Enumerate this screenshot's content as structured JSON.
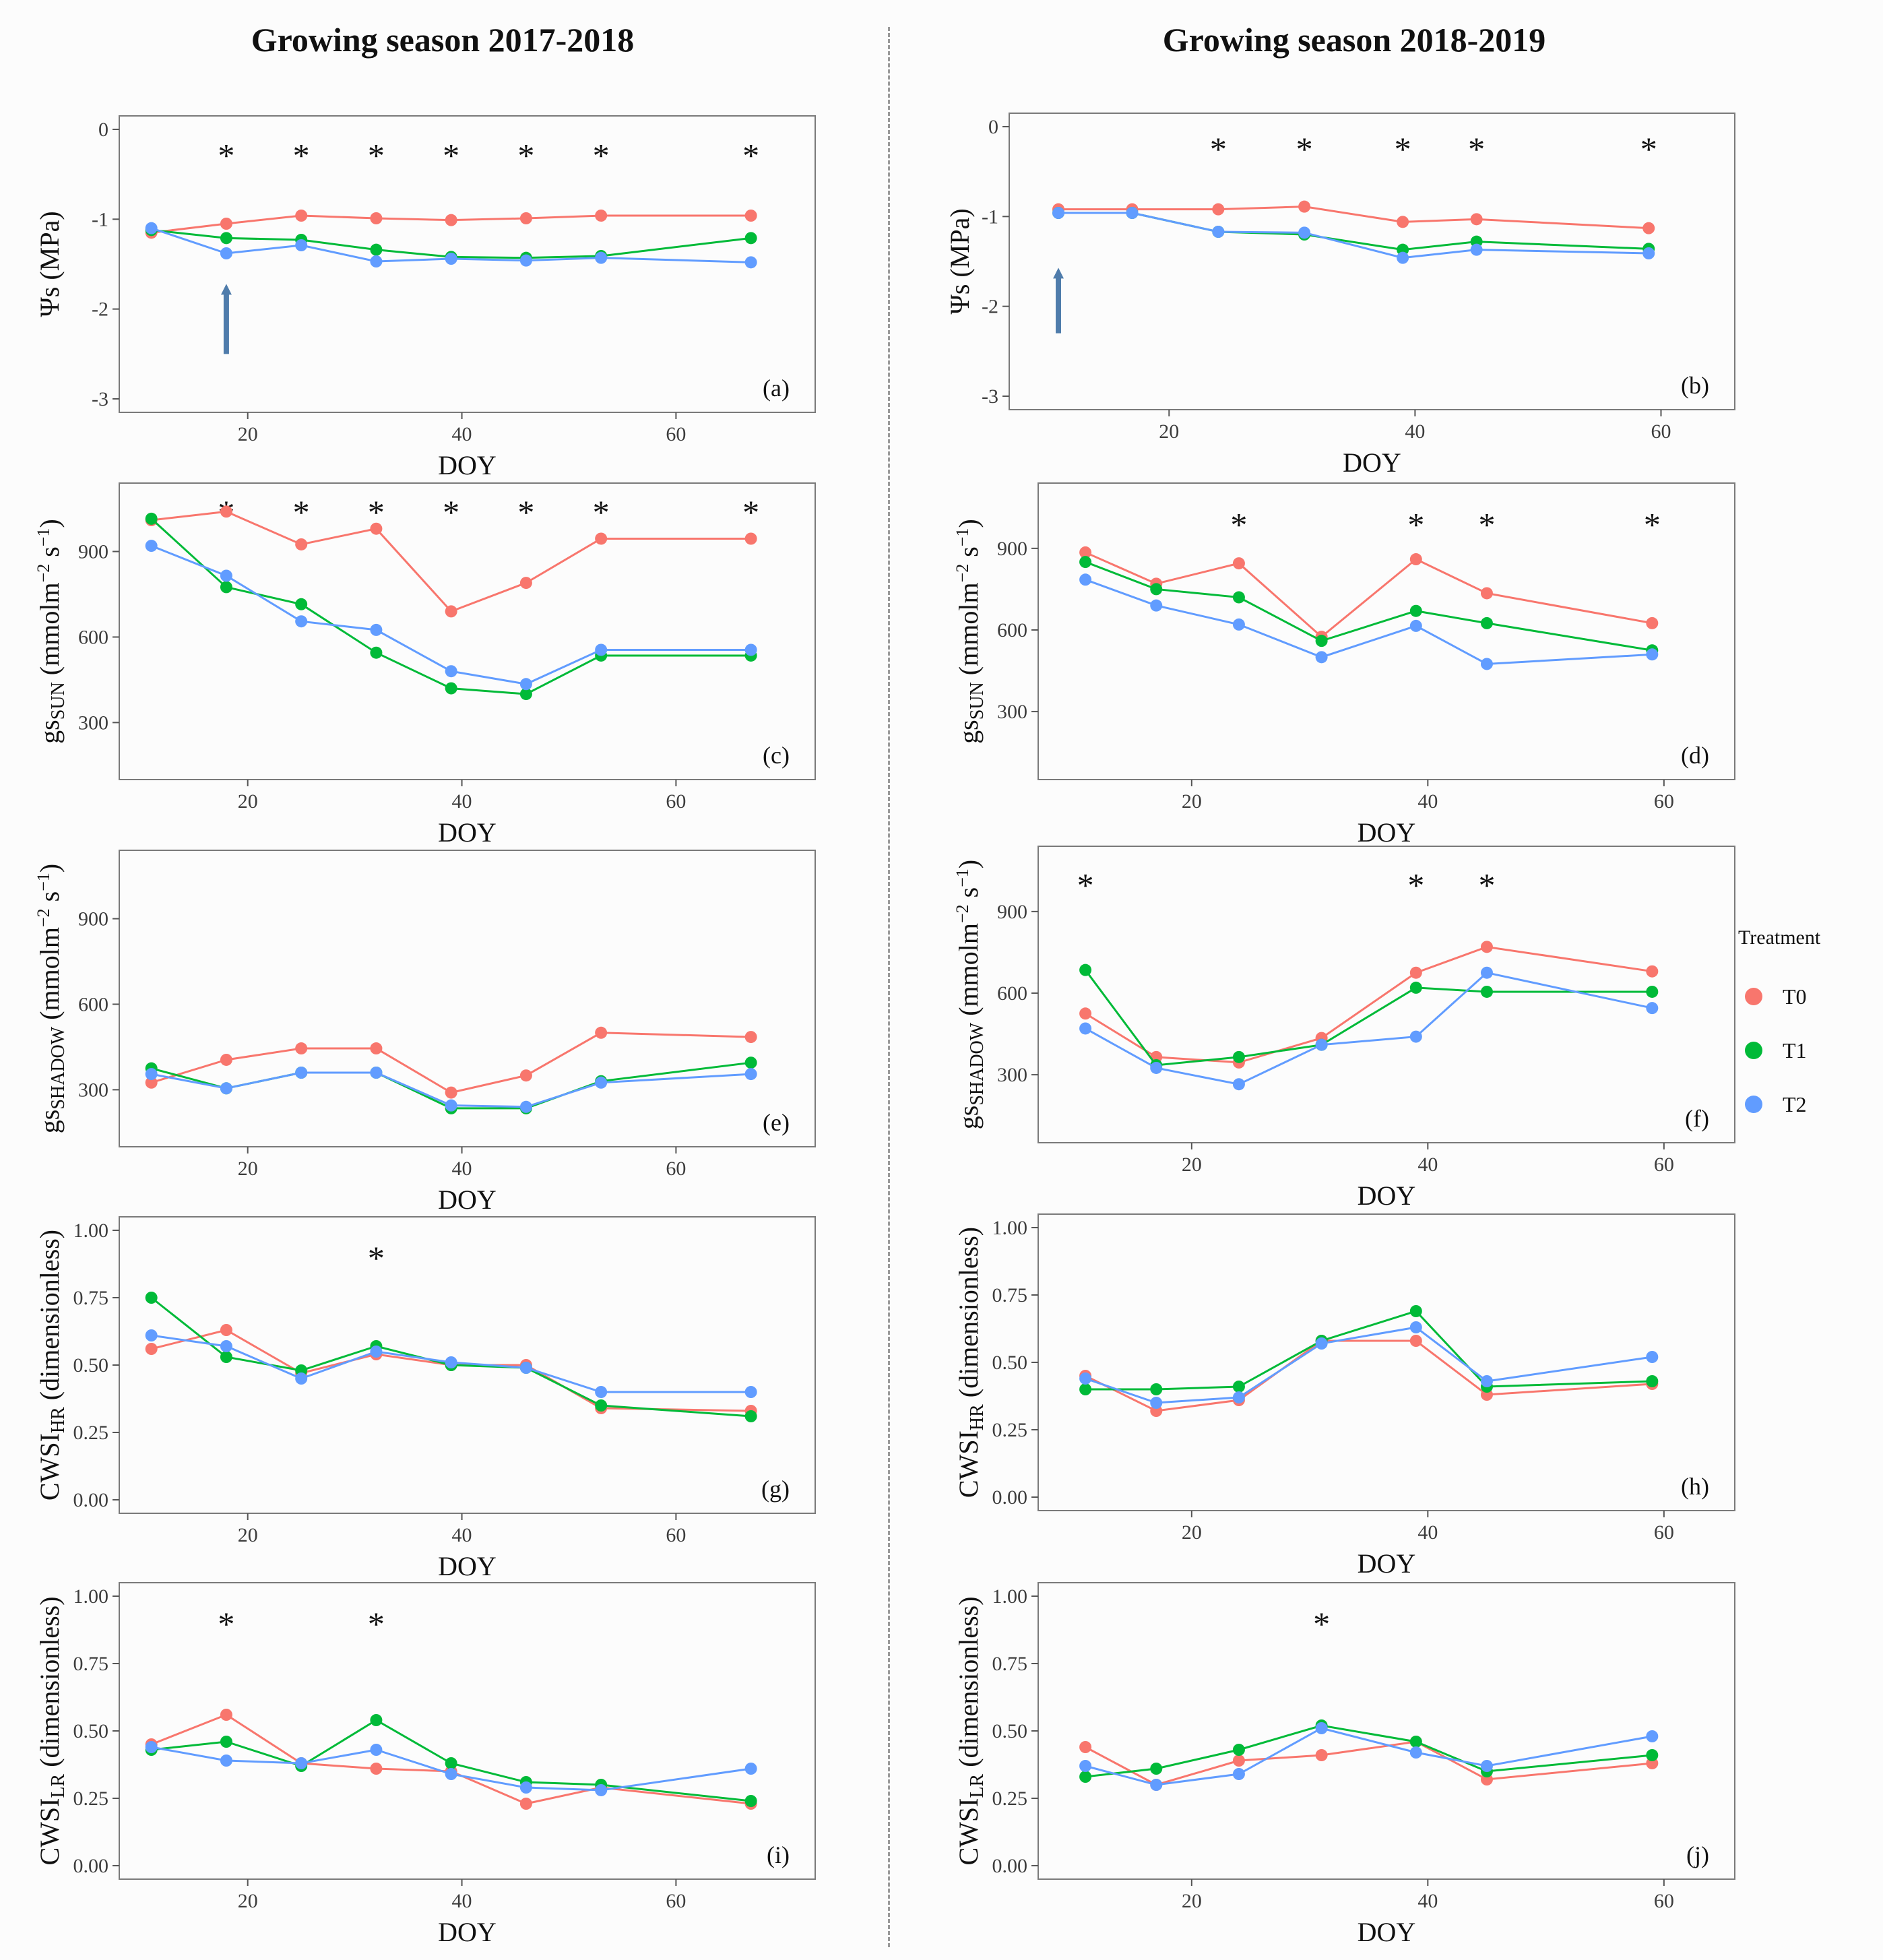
{
  "titles": {
    "left": "Growing season 2017-2018",
    "right": "Growing season 2018-2019"
  },
  "legend": {
    "title": "Treatment",
    "items": [
      {
        "label": "T0",
        "color": "#F8766D"
      },
      {
        "label": "T1",
        "color": "#00BA38"
      },
      {
        "label": "T2",
        "color": "#619CFF"
      }
    ]
  },
  "chart_data": [
    {
      "id": "a",
      "type": "line",
      "label": "(a)",
      "ylabel": "Ψs (MPa)",
      "xlabel": "DOY",
      "xlim": [
        8,
        73
      ],
      "xticks": [
        20,
        40,
        60
      ],
      "ylim": [
        -3.15,
        0.15
      ],
      "yticks": [
        0,
        -1,
        -2,
        -3
      ],
      "ytick_labels": [
        "0",
        "-1",
        "-2",
        "-3"
      ],
      "stars": [
        18,
        25,
        32,
        39,
        46,
        53,
        67
      ],
      "star_y": -0.22,
      "arrow": {
        "x": 18,
        "y_from": -2.5,
        "y_to": -1.75
      },
      "x": [
        11,
        18,
        25,
        32,
        39,
        46,
        53,
        67
      ],
      "series": [
        {
          "name": "T0",
          "values": [
            -1.15,
            -1.05,
            -0.96,
            -0.99,
            -1.01,
            -0.99,
            -0.96,
            -0.96
          ]
        },
        {
          "name": "T1",
          "values": [
            -1.12,
            -1.21,
            -1.23,
            -1.34,
            -1.42,
            -1.43,
            -1.41,
            -1.21
          ]
        },
        {
          "name": "T2",
          "values": [
            -1.1,
            -1.38,
            -1.29,
            -1.47,
            -1.44,
            -1.46,
            -1.43,
            -1.48
          ]
        }
      ]
    },
    {
      "id": "b",
      "type": "line",
      "label": "(b)",
      "ylabel": "Ψs (MPa)",
      "xlabel": "DOY",
      "xlim": [
        7,
        66
      ],
      "xticks": [
        20,
        40,
        60
      ],
      "ylim": [
        -3.15,
        0.15
      ],
      "yticks": [
        0,
        -1,
        -2,
        -3
      ],
      "ytick_labels": [
        "0",
        "-1",
        "-2",
        "-3"
      ],
      "stars": [
        24,
        31,
        39,
        45,
        59
      ],
      "star_y": -0.18,
      "arrow": {
        "x": 11,
        "y_from": -2.3,
        "y_to": -1.6
      },
      "x": [
        11,
        17,
        24,
        31,
        39,
        45,
        59
      ],
      "series": [
        {
          "name": "T0",
          "values": [
            -0.92,
            -0.92,
            -0.92,
            -0.89,
            -1.06,
            -1.03,
            -1.13
          ]
        },
        {
          "name": "T1",
          "values": [
            -0.96,
            -0.96,
            -1.17,
            -1.2,
            -1.37,
            -1.28,
            -1.36
          ]
        },
        {
          "name": "T2",
          "values": [
            -0.96,
            -0.96,
            -1.17,
            -1.18,
            -1.46,
            -1.37,
            -1.41
          ]
        }
      ]
    },
    {
      "id": "c",
      "type": "line",
      "label": "(c)",
      "ylabel": "gsSUN (mmolm−2 s−1)",
      "xlabel": "DOY",
      "ylabel_main": "gs",
      "ylabel_sub": "SUN",
      "ylabel_unit": "(mmolm",
      "ylabel_exp1": "−2",
      "ylabel_s": " s",
      "ylabel_exp2": "−1",
      "ylabel_close": ")",
      "xlim": [
        8,
        73
      ],
      "xticks": [
        20,
        40,
        60
      ],
      "ylim": [
        100,
        1140
      ],
      "yticks": [
        300,
        600,
        900
      ],
      "ytick_labels": [
        "300",
        "600",
        "900"
      ],
      "stars": [
        18,
        25,
        32,
        39,
        46,
        53,
        67
      ],
      "star_y": 1060,
      "x": [
        11,
        18,
        25,
        32,
        39,
        46,
        53,
        67
      ],
      "series": [
        {
          "name": "T0",
          "values": [
            1010,
            1040,
            925,
            980,
            690,
            790,
            945,
            945
          ]
        },
        {
          "name": "T1",
          "values": [
            1015,
            775,
            715,
            545,
            420,
            400,
            535,
            535
          ]
        },
        {
          "name": "T2",
          "values": [
            920,
            815,
            655,
            625,
            480,
            435,
            555,
            555
          ]
        }
      ]
    },
    {
      "id": "d",
      "type": "line",
      "label": "(d)",
      "ylabel": "gsSUN (mmolm−2 s−1)",
      "xlabel": "DOY",
      "ylabel_main": "gs",
      "ylabel_sub": "SUN",
      "ylabel_unit": "(mmolm",
      "ylabel_exp1": "−2",
      "ylabel_s": " s",
      "ylabel_exp2": "−1",
      "ylabel_close": ")",
      "xlim": [
        7,
        66
      ],
      "xticks": [
        20,
        40,
        60
      ],
      "ylim": [
        50,
        1140
      ],
      "yticks": [
        300,
        600,
        900
      ],
      "ytick_labels": [
        "300",
        "600",
        "900"
      ],
      "stars": [
        24,
        39,
        45,
        59
      ],
      "star_y": 1010,
      "x": [
        11,
        17,
        24,
        31,
        39,
        45,
        59
      ],
      "series": [
        {
          "name": "T0",
          "values": [
            885,
            770,
            845,
            575,
            860,
            735,
            625
          ]
        },
        {
          "name": "T1",
          "values": [
            850,
            750,
            720,
            560,
            670,
            625,
            525
          ]
        },
        {
          "name": "T2",
          "values": [
            785,
            690,
            620,
            500,
            615,
            475,
            510
          ]
        }
      ]
    },
    {
      "id": "e",
      "type": "line",
      "label": "(e)",
      "ylabel": "gsSHADOW (mmolm−2 s−1)",
      "xlabel": "DOY",
      "ylabel_main": "gs",
      "ylabel_sub": "SHADOW",
      "ylabel_unit": "(mmolm",
      "ylabel_exp1": "−2",
      "ylabel_s": " s",
      "ylabel_exp2": "−1",
      "ylabel_close": ")",
      "xlim": [
        8,
        73
      ],
      "xticks": [
        20,
        40,
        60
      ],
      "ylim": [
        100,
        1140
      ],
      "yticks": [
        300,
        600,
        900
      ],
      "ytick_labels": [
        "300",
        "600",
        "900"
      ],
      "stars": [],
      "star_y": 1060,
      "x": [
        11,
        18,
        25,
        32,
        39,
        46,
        53,
        67
      ],
      "series": [
        {
          "name": "T0",
          "values": [
            325,
            405,
            445,
            445,
            290,
            350,
            500,
            485
          ]
        },
        {
          "name": "T1",
          "values": [
            375,
            305,
            360,
            360,
            235,
            235,
            330,
            395
          ]
        },
        {
          "name": "T2",
          "values": [
            355,
            305,
            360,
            360,
            245,
            240,
            325,
            355
          ]
        }
      ]
    },
    {
      "id": "f",
      "type": "line",
      "label": "(f)",
      "ylabel": "gsSHADOW (mmolm−2 s−1)",
      "xlabel": "DOY",
      "ylabel_main": "gs",
      "ylabel_sub": "SHADOW",
      "ylabel_unit": "(mmolm",
      "ylabel_exp1": "−2",
      "ylabel_s": " s",
      "ylabel_exp2": "−1",
      "ylabel_close": ")",
      "xlim": [
        7,
        66
      ],
      "xticks": [
        20,
        40,
        60
      ],
      "ylim": [
        50,
        1140
      ],
      "yticks": [
        300,
        600,
        900
      ],
      "ytick_labels": [
        "300",
        "600",
        "900"
      ],
      "stars": [
        11,
        39,
        45
      ],
      "star_y": 1020,
      "x": [
        11,
        17,
        24,
        31,
        39,
        45,
        59
      ],
      "series": [
        {
          "name": "T0",
          "values": [
            525,
            365,
            345,
            435,
            675,
            770,
            680
          ]
        },
        {
          "name": "T1",
          "values": [
            685,
            335,
            365,
            410,
            620,
            605,
            605
          ]
        },
        {
          "name": "T2",
          "values": [
            470,
            325,
            265,
            410,
            440,
            675,
            545
          ]
        }
      ]
    },
    {
      "id": "g",
      "type": "line",
      "label": "(g)",
      "ylabel": "CWSIHR (dimensionless)",
      "xlabel": "DOY",
      "ylabel_main": "CWSI",
      "ylabel_sub": "HR",
      "ylabel_unit": "(dimensionless)",
      "xlim": [
        8,
        73
      ],
      "xticks": [
        20,
        40,
        60
      ],
      "ylim": [
        -0.05,
        1.05
      ],
      "yticks": [
        0,
        0.25,
        0.5,
        0.75,
        1.0
      ],
      "ytick_labels": [
        "0.00",
        "0.25",
        "0.50",
        "0.75",
        "1.00"
      ],
      "stars": [
        32
      ],
      "star_y": 0.92,
      "x": [
        11,
        18,
        25,
        32,
        39,
        46,
        53,
        67
      ],
      "series": [
        {
          "name": "T0",
          "values": [
            0.56,
            0.63,
            0.47,
            0.54,
            0.5,
            0.5,
            0.34,
            0.33
          ]
        },
        {
          "name": "T1",
          "values": [
            0.75,
            0.53,
            0.48,
            0.57,
            0.5,
            0.49,
            0.35,
            0.31
          ]
        },
        {
          "name": "T2",
          "values": [
            0.61,
            0.57,
            0.45,
            0.55,
            0.51,
            0.49,
            0.4,
            0.4
          ]
        }
      ]
    },
    {
      "id": "h",
      "type": "line",
      "label": "(h)",
      "ylabel": "CWSIHR (dimensionless)",
      "xlabel": "DOY",
      "ylabel_main": "CWSI",
      "ylabel_sub": "HR",
      "ylabel_unit": "(dimensionless)",
      "xlim": [
        7,
        66
      ],
      "xticks": [
        20,
        40,
        60
      ],
      "ylim": [
        -0.05,
        1.05
      ],
      "yticks": [
        0,
        0.25,
        0.5,
        0.75,
        1.0
      ],
      "ytick_labels": [
        "0.00",
        "0.25",
        "0.50",
        "0.75",
        "1.00"
      ],
      "stars": [],
      "star_y": 0.92,
      "x": [
        11,
        17,
        24,
        31,
        39,
        45,
        59
      ],
      "series": [
        {
          "name": "T0",
          "values": [
            0.45,
            0.32,
            0.36,
            0.58,
            0.58,
            0.38,
            0.42
          ]
        },
        {
          "name": "T1",
          "values": [
            0.4,
            0.4,
            0.41,
            0.58,
            0.69,
            0.41,
            0.43
          ]
        },
        {
          "name": "T2",
          "values": [
            0.44,
            0.35,
            0.37,
            0.57,
            0.63,
            0.43,
            0.52
          ]
        }
      ]
    },
    {
      "id": "i",
      "type": "line",
      "label": "(i)",
      "ylabel": "CWSILR (dimensionless)",
      "xlabel": "DOY",
      "ylabel_main": "CWSI",
      "ylabel_sub": "LR",
      "ylabel_unit": "(dimensionless)",
      "xlim": [
        8,
        73
      ],
      "xticks": [
        20,
        40,
        60
      ],
      "ylim": [
        -0.05,
        1.05
      ],
      "yticks": [
        0,
        0.25,
        0.5,
        0.75,
        1.0
      ],
      "ytick_labels": [
        "0.00",
        "0.25",
        "0.50",
        "0.75",
        "1.00"
      ],
      "stars": [
        18,
        32
      ],
      "star_y": 0.92,
      "x": [
        11,
        18,
        25,
        32,
        39,
        46,
        53,
        67
      ],
      "series": [
        {
          "name": "T0",
          "values": [
            0.45,
            0.56,
            0.38,
            0.36,
            0.35,
            0.23,
            0.29,
            0.23
          ]
        },
        {
          "name": "T1",
          "values": [
            0.43,
            0.46,
            0.37,
            0.54,
            0.38,
            0.31,
            0.3,
            0.24
          ]
        },
        {
          "name": "T2",
          "values": [
            0.44,
            0.39,
            0.38,
            0.43,
            0.34,
            0.29,
            0.28,
            0.36
          ]
        }
      ]
    },
    {
      "id": "j",
      "type": "line",
      "label": "(j)",
      "ylabel": "CWSILR (dimensionless)",
      "xlabel": "DOY",
      "ylabel_main": "CWSI",
      "ylabel_sub": "LR",
      "ylabel_unit": "(dimensionless)",
      "xlim": [
        7,
        66
      ],
      "xticks": [
        20,
        40,
        60
      ],
      "ylim": [
        -0.05,
        1.05
      ],
      "yticks": [
        0,
        0.25,
        0.5,
        0.75,
        1.0
      ],
      "ytick_labels": [
        "0.00",
        "0.25",
        "0.50",
        "0.75",
        "1.00"
      ],
      "stars": [
        31
      ],
      "star_y": 0.92,
      "x": [
        11,
        17,
        24,
        31,
        39,
        45,
        59
      ],
      "series": [
        {
          "name": "T0",
          "values": [
            0.44,
            0.3,
            0.39,
            0.41,
            0.46,
            0.32,
            0.38
          ]
        },
        {
          "name": "T1",
          "values": [
            0.33,
            0.36,
            0.43,
            0.52,
            0.46,
            0.35,
            0.41
          ]
        },
        {
          "name": "T2",
          "values": [
            0.37,
            0.3,
            0.34,
            0.51,
            0.42,
            0.37,
            0.48
          ]
        }
      ]
    }
  ]
}
